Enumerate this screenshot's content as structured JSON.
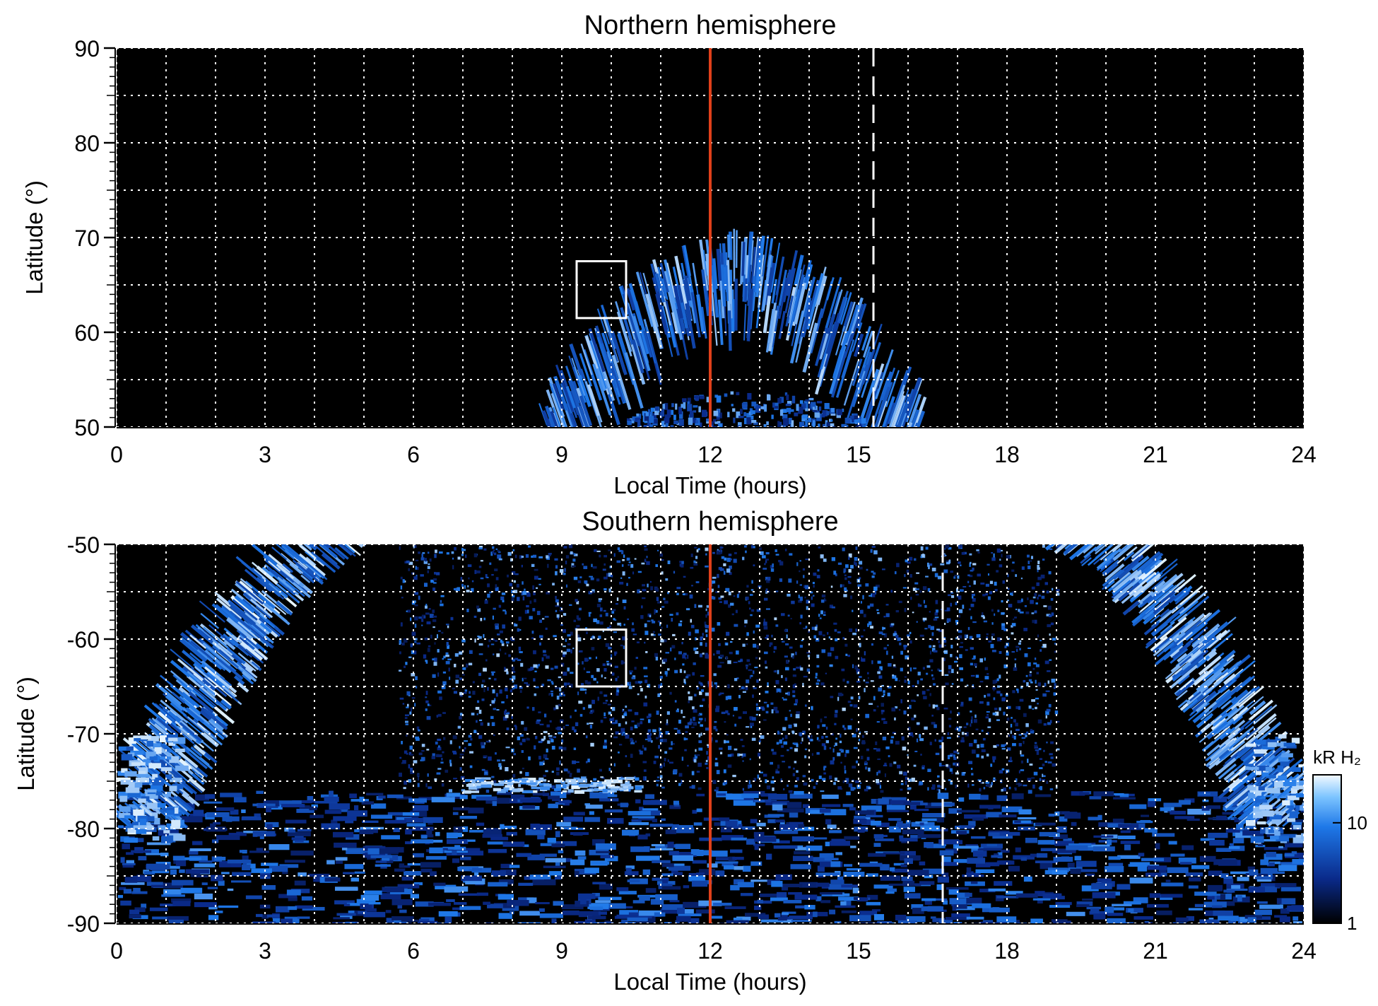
{
  "chart_data": [
    {
      "type": "heatmap",
      "title": "Northern hemisphere",
      "xlabel": "Local Time (hours)",
      "ylabel": "Latitude (°)",
      "xlim": [
        0,
        24
      ],
      "ylim": [
        50,
        90
      ],
      "xticks": [
        "0",
        "3",
        "6",
        "9",
        "12",
        "15",
        "18",
        "21",
        "24"
      ],
      "yticks": [
        "50",
        "60",
        "70",
        "80",
        "90"
      ],
      "grid": true,
      "noon_line_lt": 12,
      "noon_line_color": "#e0401a",
      "dashed_line_lt": 15.3,
      "box": {
        "lt": [
          9.3,
          10.3
        ],
        "lat": [
          61.5,
          67.5
        ]
      },
      "auroral_oval": {
        "center_lt": 12.5,
        "lt_span": [
          8.5,
          16.5
        ],
        "peak_lat": 63,
        "inner_lat": 55,
        "outer_lat": 68
      }
    },
    {
      "type": "heatmap",
      "title": "Southern hemisphere",
      "xlabel": "Local Time (hours)",
      "ylabel": "Latitude (°)",
      "xlim": [
        0,
        24
      ],
      "ylim": [
        -90,
        -50
      ],
      "xticks": [
        "0",
        "3",
        "6",
        "9",
        "12",
        "15",
        "18",
        "21",
        "24"
      ],
      "yticks": [
        "-50",
        "-60",
        "-70",
        "-80",
        "-90"
      ],
      "grid": true,
      "noon_line_lt": 12,
      "noon_line_color": "#e0401a",
      "dashed_line_lt": 16.7,
      "box": {
        "lt": [
          9.3,
          10.3
        ],
        "lat": [
          -65,
          -59
        ]
      },
      "colorbar": {
        "label": "kR H₂",
        "scale": "log",
        "range": [
          1,
          30
        ],
        "ticks": [
          "1",
          "10"
        ]
      }
    }
  ],
  "colors": {
    "background": "#000000",
    "emission_low": "#0a2a8a",
    "emission_mid": "#1e78e8",
    "emission_high": "#e8f6ff",
    "grid": "#ffffff"
  }
}
